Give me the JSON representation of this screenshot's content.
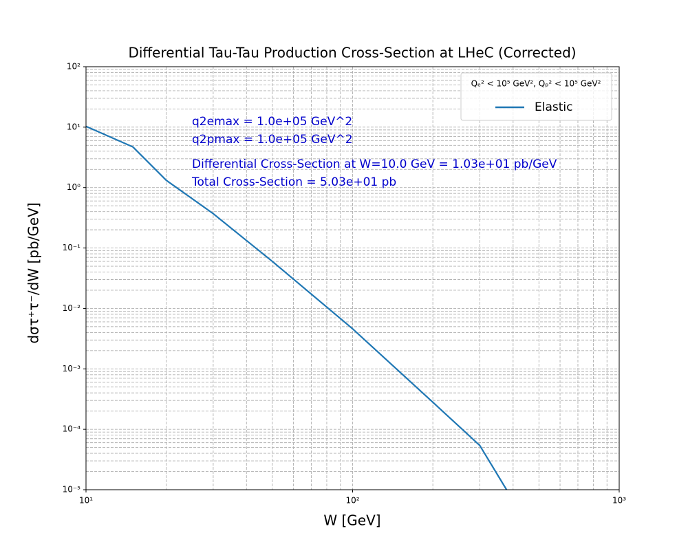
{
  "chart_data": {
    "type": "line",
    "title": "Differential Tau-Tau Production Cross-Section at LHeC (Corrected)",
    "x_label": "W [GeV]",
    "y_label": "dστ⁺τ⁻/dW  [pb/GeV]",
    "x_scale": "log",
    "y_scale": "log",
    "xlim": [
      10,
      1000
    ],
    "ylim": [
      1e-05,
      100
    ],
    "xticks": [
      {
        "value": 10,
        "label": "10¹"
      },
      {
        "value": 100,
        "label": "10²"
      },
      {
        "value": 1000,
        "label": "10³"
      }
    ],
    "yticks": [
      {
        "value": 1e-05,
        "label": "10⁻⁵"
      },
      {
        "value": 0.0001,
        "label": "10⁻⁴"
      },
      {
        "value": 0.001,
        "label": "10⁻³"
      },
      {
        "value": 0.01,
        "label": "10⁻²"
      },
      {
        "value": 0.1,
        "label": "10⁻¹"
      },
      {
        "value": 1,
        "label": "10⁰"
      },
      {
        "value": 10,
        "label": "10¹"
      },
      {
        "value": 100,
        "label": "10²"
      }
    ],
    "grid": true,
    "minor_grid": true,
    "legend_title": "Qₑ² < 10⁵ GeV², Qₚ² < 10⁵ GeV²",
    "legend_position": "upper right",
    "annotations": [
      "q2emax = 1.0e+05 GeV^2",
      "q2pmax = 1.0e+05 GeV^2",
      "Differential Cross-Section at W=10.0 GeV = 1.03e+01 pb/GeV",
      "Total Cross-Section = 5.03e+01 pb"
    ],
    "annotation_color": "#0000cc",
    "series": [
      {
        "name": "Elastic",
        "color": "#1f77b4",
        "x": [
          10,
          15,
          20,
          30,
          50,
          100,
          200,
          300,
          378
        ],
        "values": [
          10.3,
          4.7,
          1.32,
          0.37,
          0.06,
          0.0046,
          0.00028,
          5.4e-05,
          1e-05
        ]
      }
    ]
  }
}
